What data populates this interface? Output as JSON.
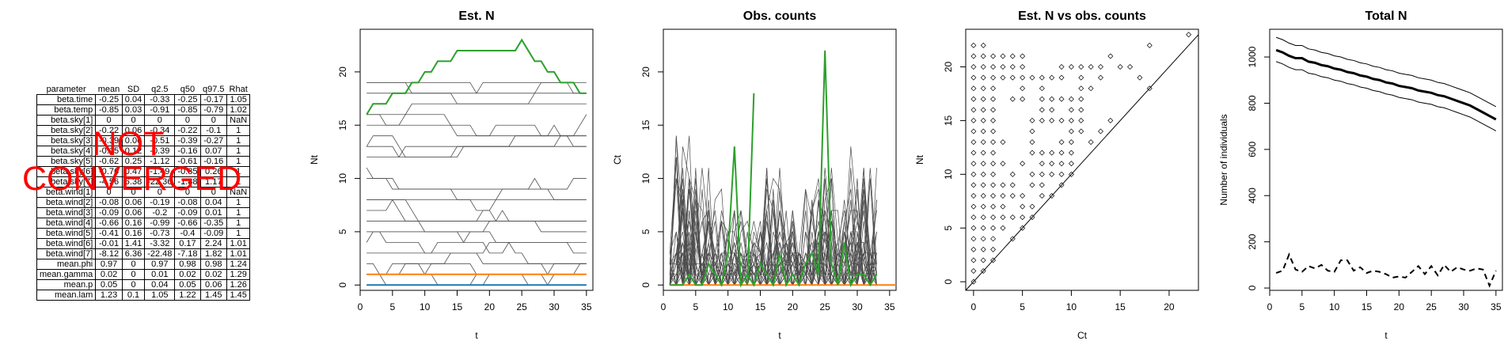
{
  "summary": {
    "headers": [
      "parameter",
      "mean",
      "SD",
      "q2.5",
      "q50",
      "q97.5",
      "Rhat"
    ],
    "rows": [
      [
        "beta.time",
        "-0.25",
        "0.04",
        "-0.33",
        "-0.25",
        "-0.17",
        "1.05"
      ],
      [
        "beta.temp",
        "-0.85",
        "0.03",
        "-0.91",
        "-0.85",
        "-0.79",
        "1.02"
      ],
      [
        "beta.sky[1]",
        "0",
        "0",
        "0",
        "0",
        "0",
        "NaN"
      ],
      [
        "beta.sky[2]",
        "-0.22",
        "0.06",
        "-0.34",
        "-0.22",
        "-0.1",
        "1"
      ],
      [
        "beta.sky[3]",
        "-0.39",
        "0.06",
        "-0.51",
        "-0.39",
        "-0.27",
        "1"
      ],
      [
        "beta.sky[4]",
        "-0.15",
        "0.12",
        "-0.39",
        "-0.16",
        "0.07",
        "1"
      ],
      [
        "beta.sky[5]",
        "-0.62",
        "0.25",
        "-1.12",
        "-0.61",
        "-0.16",
        "1"
      ],
      [
        "beta.sky[6]",
        "-0.76",
        "0.47",
        "-1.49",
        "-0.85",
        "0.26",
        "1"
      ],
      [
        "beta.sky[7]",
        "-4.56",
        "6.38",
        "-22.36",
        "-1.88",
        "1.17",
        "1"
      ],
      [
        "beta.wind[1]",
        "0",
        "0",
        "0",
        "0",
        "0",
        "NaN"
      ],
      [
        "beta.wind[2]",
        "-0.08",
        "0.06",
        "-0.19",
        "-0.08",
        "0.04",
        "1"
      ],
      [
        "beta.wind[3]",
        "-0.09",
        "0.06",
        "-0.2",
        "-0.09",
        "0.01",
        "1"
      ],
      [
        "beta.wind[4]",
        "-0.66",
        "0.16",
        "-0.99",
        "-0.66",
        "-0.35",
        "1"
      ],
      [
        "beta.wind[5]",
        "-0.41",
        "0.16",
        "-0.73",
        "-0.4",
        "-0.09",
        "1"
      ],
      [
        "beta.wind[6]",
        "-0.01",
        "1.41",
        "-3.32",
        "0.17",
        "2.24",
        "1.01"
      ],
      [
        "beta.wind[7]",
        "-8.12",
        "6.36",
        "-22.48",
        "-7.18",
        "1.82",
        "1.01"
      ],
      [
        "mean.phi",
        "0.97",
        "0",
        "0.97",
        "0.98",
        "0.98",
        "1.24"
      ],
      [
        "mean.gamma",
        "0.02",
        "0",
        "0.01",
        "0.02",
        "0.02",
        "1.29"
      ],
      [
        "mean.p",
        "0.05",
        "0",
        "0.04",
        "0.05",
        "0.06",
        "1.26"
      ],
      [
        "mean.lam",
        "1.23",
        "0.1",
        "1.05",
        "1.22",
        "1.45",
        "1.45"
      ]
    ]
  },
  "warning": {
    "line1": "NOT",
    "line2": "CONVERGED",
    "color": "#ff0000"
  },
  "colors": {
    "gray_trace": "#4d4d4d",
    "highlight": "#2ca02c",
    "orange": "#ff7f0e",
    "blue": "#1f77b4",
    "black": "#000000"
  },
  "chart_data": [
    {
      "id": "est-n",
      "type": "line",
      "title": "Est. N",
      "xlabel": "t",
      "ylabel": "Nt",
      "xlim": [
        0,
        36
      ],
      "ylim": [
        -0.5,
        24
      ],
      "xticks": [
        0,
        5,
        10,
        15,
        20,
        25,
        30,
        35
      ],
      "yticks": [
        0,
        5,
        10,
        15,
        20
      ],
      "grid": false,
      "x": [
        1,
        2,
        3,
        4,
        5,
        6,
        7,
        8,
        9,
        10,
        11,
        12,
        13,
        14,
        15,
        16,
        17,
        18,
        19,
        20,
        21,
        22,
        23,
        24,
        25,
        26,
        27,
        28,
        28,
        30,
        31,
        32,
        33,
        34,
        35
      ],
      "gray_series_levels": [
        20,
        19,
        18,
        17,
        16,
        15,
        14,
        13,
        12,
        11,
        10,
        9,
        8,
        7,
        6,
        5,
        4,
        3,
        2,
        1,
        1,
        1,
        0
      ],
      "gray_series_drift": "site trajectories stay near their level with small steps",
      "highlight_series": {
        "color": "#2ca02c",
        "values": [
          16,
          17,
          17,
          17,
          18,
          18,
          18,
          19,
          19,
          20,
          20,
          21,
          21,
          21,
          22,
          22,
          22,
          22,
          22,
          22,
          22,
          22,
          22,
          22,
          23,
          22,
          21,
          21,
          20,
          20,
          19,
          19,
          19,
          18,
          18
        ]
      },
      "orange_series": {
        "color": "#ff7f0e",
        "values": [
          1,
          1,
          1,
          1,
          1,
          1,
          1,
          1,
          1,
          1,
          1,
          1,
          1,
          1,
          1,
          1,
          1,
          1,
          1,
          1,
          1,
          1,
          1,
          1,
          1,
          1,
          1,
          1,
          1,
          1,
          1,
          1,
          1,
          1,
          1
        ]
      },
      "blue_series": {
        "color": "#1f77b4",
        "values": [
          0,
          0,
          0,
          0,
          0,
          0,
          0,
          0,
          0,
          0,
          0,
          0,
          0,
          0,
          0,
          0,
          0,
          0,
          0,
          0,
          0,
          0,
          0,
          0,
          0,
          0,
          0,
          0,
          0,
          0,
          0,
          0,
          0,
          0,
          0
        ]
      }
    },
    {
      "id": "obs-counts",
      "type": "line",
      "title": "Obs. counts",
      "xlabel": "t",
      "ylabel": "Ct",
      "xlim": [
        0,
        36
      ],
      "ylim": [
        -0.5,
        24
      ],
      "xticks": [
        0,
        5,
        10,
        15,
        20,
        25,
        30,
        35
      ],
      "yticks": [
        0,
        5,
        10,
        15,
        20
      ],
      "grid": false,
      "x": [
        1,
        2,
        3,
        4,
        5,
        6,
        7,
        8,
        9,
        10,
        11,
        12,
        13,
        14,
        15,
        16,
        17,
        18,
        19,
        20,
        21,
        22,
        23,
        24,
        25,
        26,
        27,
        28,
        29,
        30,
        31,
        32,
        33
      ],
      "gray_peaks": [
        {
          "x": 3,
          "y": 15
        },
        {
          "x": 4,
          "y": 11
        },
        {
          "x": 6,
          "y": 13
        },
        {
          "x": 8,
          "y": 10
        },
        {
          "x": 11,
          "y": 8
        },
        {
          "x": 14,
          "y": 7
        },
        {
          "x": 17,
          "y": 12
        },
        {
          "x": 19,
          "y": 8
        },
        {
          "x": 23,
          "y": 10
        },
        {
          "x": 25,
          "y": 12
        },
        {
          "x": 27,
          "y": 11
        },
        {
          "x": 30,
          "y": 14
        },
        {
          "x": 32,
          "y": 12
        }
      ],
      "highlight_series": {
        "color": "#2ca02c",
        "values": [
          0,
          0,
          0,
          1,
          0,
          0,
          2,
          1,
          0,
          3,
          13,
          0,
          1,
          0,
          2,
          1,
          0,
          3,
          0,
          1,
          0,
          2,
          3,
          1,
          22,
          2,
          0,
          4,
          0,
          1,
          1,
          0,
          1
        ]
      },
      "second_highlight": {
        "color": "#2ca02c",
        "x": [
          13,
          14
        ],
        "values": [
          0,
          18
        ]
      },
      "orange_series": {
        "color": "#ff7f0e",
        "x": [
          1,
          36
        ],
        "values": [
          0,
          0
        ]
      }
    },
    {
      "id": "est-vs-obs",
      "type": "scatter",
      "title": "Est. N vs obs. counts",
      "xlabel": "Ct",
      "ylabel": "Nt",
      "xlim": [
        -0.8,
        23
      ],
      "ylim": [
        -0.8,
        23.5
      ],
      "xticks": [
        0,
        5,
        10,
        15,
        20
      ],
      "yticks": [
        0,
        5,
        10,
        15,
        20
      ],
      "grid": false,
      "reference_line": {
        "from": [
          -0.8,
          -0.8
        ],
        "to": [
          23,
          23
        ]
      },
      "points_description": "Nt ≥ Ct for every point; dense grid of integer pairs above the 1:1 line",
      "max_ct_by_nt": [
        0,
        1,
        2,
        3,
        4,
        5,
        6,
        7,
        8,
        9,
        10,
        11,
        12,
        12,
        13,
        14,
        12,
        13,
        14,
        11,
        13,
        5,
        1
      ],
      "outliers": [
        [
          18,
          22
        ],
        [
          22,
          23
        ],
        [
          16,
          20
        ],
        [
          15,
          20
        ],
        [
          14,
          21
        ],
        [
          13,
          19
        ],
        [
          12,
          20
        ],
        [
          18,
          18
        ],
        [
          17,
          19
        ]
      ]
    },
    {
      "id": "total-n",
      "type": "line",
      "title": "Total N",
      "xlabel": "t",
      "ylabel": "Number of individuals",
      "xlim": [
        0,
        36
      ],
      "ylim": [
        -10,
        1120
      ],
      "xticks": [
        0,
        5,
        10,
        15,
        20,
        25,
        30,
        35
      ],
      "yticks": [
        0,
        200,
        400,
        600,
        800,
        1000
      ],
      "grid": false,
      "x": [
        1,
        2,
        3,
        4,
        5,
        6,
        7,
        8,
        9,
        10,
        11,
        12,
        13,
        14,
        15,
        16,
        17,
        18,
        19,
        20,
        21,
        22,
        23,
        24,
        25,
        26,
        27,
        28,
        29,
        30,
        31,
        32,
        33,
        34,
        35
      ],
      "series": [
        {
          "name": "",
          "style": "solid-thick",
          "values": [
            1030,
            1020,
            1005,
            995,
            995,
            980,
            975,
            965,
            960,
            950,
            945,
            935,
            930,
            920,
            915,
            905,
            900,
            890,
            885,
            875,
            870,
            865,
            855,
            850,
            845,
            835,
            830,
            820,
            810,
            800,
            790,
            775,
            760,
            745,
            730
          ]
        },
        {
          "name": "",
          "style": "solid-thin",
          "values": [
            1085,
            1075,
            1060,
            1050,
            1050,
            1035,
            1030,
            1020,
            1015,
            1005,
            1000,
            990,
            985,
            975,
            970,
            960,
            955,
            945,
            940,
            930,
            925,
            920,
            910,
            905,
            900,
            890,
            885,
            875,
            865,
            855,
            845,
            830,
            815,
            800,
            785
          ]
        },
        {
          "name": "",
          "style": "solid-thin",
          "values": [
            980,
            970,
            955,
            945,
            945,
            930,
            925,
            915,
            910,
            900,
            895,
            885,
            880,
            870,
            865,
            855,
            850,
            840,
            835,
            825,
            820,
            815,
            805,
            800,
            795,
            785,
            780,
            770,
            760,
            750,
            740,
            725,
            710,
            695,
            680
          ]
        },
        {
          "name": "",
          "style": "dashed",
          "values": [
            65,
            75,
            145,
            80,
            70,
            95,
            85,
            100,
            75,
            70,
            120,
            120,
            75,
            90,
            65,
            75,
            70,
            60,
            45,
            50,
            45,
            70,
            95,
            60,
            95,
            55,
            100,
            70,
            90,
            80,
            75,
            85,
            80,
            10,
            75
          ]
        }
      ]
    }
  ]
}
